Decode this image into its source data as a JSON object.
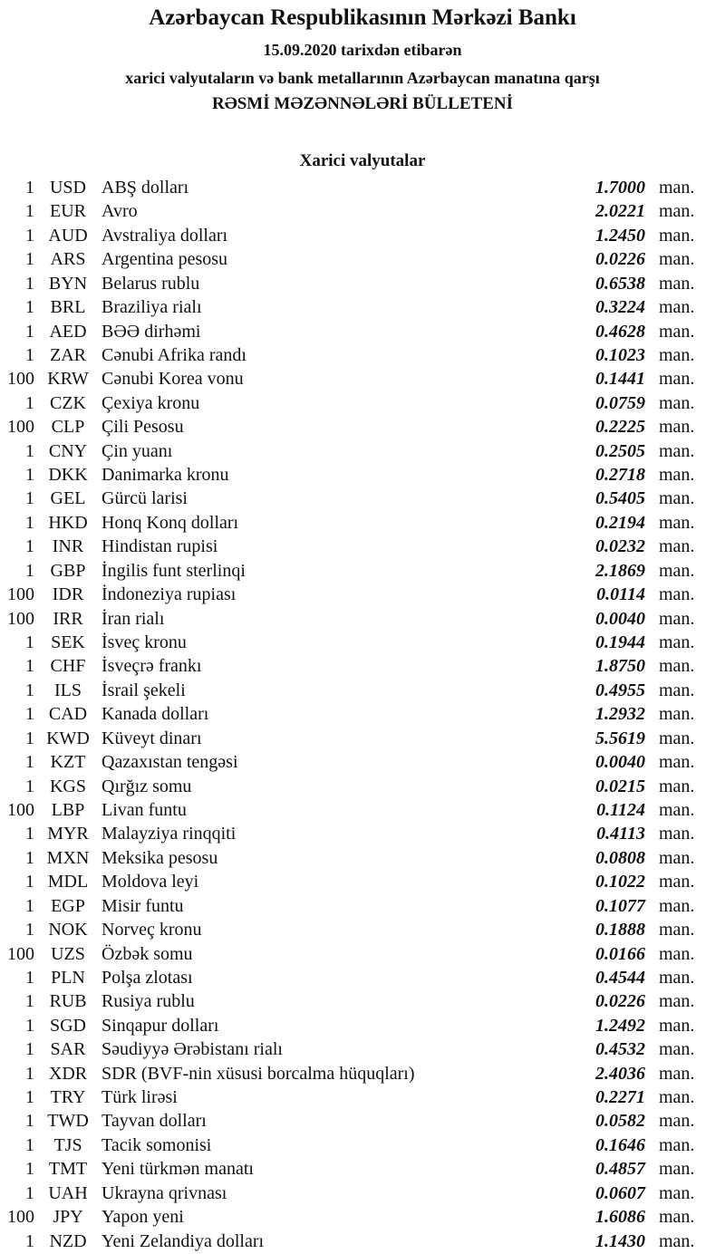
{
  "header": {
    "title": "Azərbaycan Respublikasının Mərkəzi Bankı",
    "date_line": "15.09.2020 tarixdən etibarən",
    "subtitle": "xarici valyutaların və bank metallarının Azərbaycan manatına qarşı",
    "bulletin": "RƏSMİ MƏZƏNNƏLƏRİ BÜLLETENİ"
  },
  "section_title": "Xarici valyutalar",
  "currencies": [
    {
      "amount": "1",
      "code": "USD",
      "name": "ABŞ dolları",
      "rate": "1.7000",
      "unit": "man."
    },
    {
      "amount": "1",
      "code": "EUR",
      "name": "Avro",
      "rate": "2.0221",
      "unit": "man."
    },
    {
      "amount": "1",
      "code": "AUD",
      "name": "Avstraliya dolları",
      "rate": "1.2450",
      "unit": "man."
    },
    {
      "amount": "1",
      "code": "ARS",
      "name": "Argentina pesosu",
      "rate": "0.0226",
      "unit": "man."
    },
    {
      "amount": "1",
      "code": "BYN",
      "name": "Belarus rublu",
      "rate": "0.6538",
      "unit": "man."
    },
    {
      "amount": "1",
      "code": "BRL",
      "name": "Braziliya rialı",
      "rate": "0.3224",
      "unit": "man."
    },
    {
      "amount": "1",
      "code": "AED",
      "name": "BƏƏ dirhəmi",
      "rate": "0.4628",
      "unit": "man."
    },
    {
      "amount": "1",
      "code": "ZAR",
      "name": "Cənubi Afrika randı",
      "rate": "0.1023",
      "unit": "man."
    },
    {
      "amount": "100",
      "code": "KRW",
      "name": "Cənubi Korea vonu",
      "rate": "0.1441",
      "unit": "man."
    },
    {
      "amount": "1",
      "code": "CZK",
      "name": "Çexiya kronu",
      "rate": "0.0759",
      "unit": "man."
    },
    {
      "amount": "100",
      "code": "CLP",
      "name": "Çili Pesosu",
      "rate": "0.2225",
      "unit": "man."
    },
    {
      "amount": "1",
      "code": "CNY",
      "name": "Çin yuanı",
      "rate": "0.2505",
      "unit": "man."
    },
    {
      "amount": "1",
      "code": "DKK",
      "name": "Danimarka kronu",
      "rate": "0.2718",
      "unit": "man."
    },
    {
      "amount": "1",
      "code": "GEL",
      "name": "Gürcü larisi",
      "rate": "0.5405",
      "unit": "man."
    },
    {
      "amount": "1",
      "code": "HKD",
      "name": "Honq Konq dolları",
      "rate": "0.2194",
      "unit": "man."
    },
    {
      "amount": "1",
      "code": "INR",
      "name": "Hindistan rupisi",
      "rate": "0.0232",
      "unit": "man."
    },
    {
      "amount": "1",
      "code": "GBP",
      "name": "İngilis funt sterlinqi",
      "rate": "2.1869",
      "unit": "man."
    },
    {
      "amount": "100",
      "code": "IDR",
      "name": "İndoneziya rupiası",
      "rate": "0.0114",
      "unit": "man."
    },
    {
      "amount": "100",
      "code": "IRR",
      "name": "İran rialı",
      "rate": "0.0040",
      "unit": "man."
    },
    {
      "amount": "1",
      "code": "SEK",
      "name": "İsveç kronu",
      "rate": "0.1944",
      "unit": "man."
    },
    {
      "amount": "1",
      "code": "CHF",
      "name": "İsveçrə frankı",
      "rate": "1.8750",
      "unit": "man."
    },
    {
      "amount": "1",
      "code": "ILS",
      "name": "İsrail şekeli",
      "rate": "0.4955",
      "unit": "man."
    },
    {
      "amount": "1",
      "code": "CAD",
      "name": "Kanada dolları",
      "rate": "1.2932",
      "unit": "man."
    },
    {
      "amount": "1",
      "code": "KWD",
      "name": "Küveyt dinarı",
      "rate": "5.5619",
      "unit": "man."
    },
    {
      "amount": "1",
      "code": "KZT",
      "name": "Qazaxıstan tengəsi",
      "rate": "0.0040",
      "unit": "man."
    },
    {
      "amount": "1",
      "code": "KGS",
      "name": "Qırğız somu",
      "rate": "0.0215",
      "unit": "man."
    },
    {
      "amount": "100",
      "code": "LBP",
      "name": "Livan funtu",
      "rate": "0.1124",
      "unit": "man."
    },
    {
      "amount": "1",
      "code": "MYR",
      "name": "Malayziya rinqqiti",
      "rate": "0.4113",
      "unit": "man."
    },
    {
      "amount": "1",
      "code": "MXN",
      "name": "Meksika pesosu",
      "rate": "0.0808",
      "unit": "man."
    },
    {
      "amount": "1",
      "code": "MDL",
      "name": "Moldova leyi",
      "rate": "0.1022",
      "unit": "man."
    },
    {
      "amount": "1",
      "code": "EGP",
      "name": "Misir funtu",
      "rate": "0.1077",
      "unit": "man."
    },
    {
      "amount": "1",
      "code": "NOK",
      "name": "Norveç kronu",
      "rate": "0.1888",
      "unit": "man."
    },
    {
      "amount": "100",
      "code": "UZS",
      "name": "Özbək somu",
      "rate": "0.0166",
      "unit": "man."
    },
    {
      "amount": "1",
      "code": "PLN",
      "name": "Polşa zlotası",
      "rate": "0.4544",
      "unit": "man."
    },
    {
      "amount": "1",
      "code": "RUB",
      "name": "Rusiya rublu",
      "rate": "0.0226",
      "unit": "man."
    },
    {
      "amount": "1",
      "code": "SGD",
      "name": "Sinqapur dolları",
      "rate": "1.2492",
      "unit": "man."
    },
    {
      "amount": "1",
      "code": "SAR",
      "name": "Səudiyyə Ərəbistanı rialı",
      "rate": "0.4532",
      "unit": "man."
    },
    {
      "amount": "1",
      "code": "XDR",
      "name": "SDR (BVF-nin xüsusi borcalma hüquqları)",
      "rate": "2.4036",
      "unit": "man."
    },
    {
      "amount": "1",
      "code": "TRY",
      "name": "Türk lirəsi",
      "rate": "0.2271",
      "unit": "man."
    },
    {
      "amount": "1",
      "code": "TWD",
      "name": "Tayvan dolları",
      "rate": "0.0582",
      "unit": "man."
    },
    {
      "amount": "1",
      "code": "TJS",
      "name": "Tacik somonisi",
      "rate": "0.1646",
      "unit": "man."
    },
    {
      "amount": "1",
      "code": "TMT",
      "name": "Yeni türkmən manatı",
      "rate": "0.4857",
      "unit": "man."
    },
    {
      "amount": "1",
      "code": "UAH",
      "name": "Ukrayna qrivnası",
      "rate": "0.0607",
      "unit": "man."
    },
    {
      "amount": "100",
      "code": "JPY",
      "name": "Yapon yeni",
      "rate": "1.6086",
      "unit": "man."
    },
    {
      "amount": "1",
      "code": "NZD",
      "name": "Yeni Zelandiya dolları",
      "rate": "1.1430",
      "unit": "man."
    }
  ]
}
